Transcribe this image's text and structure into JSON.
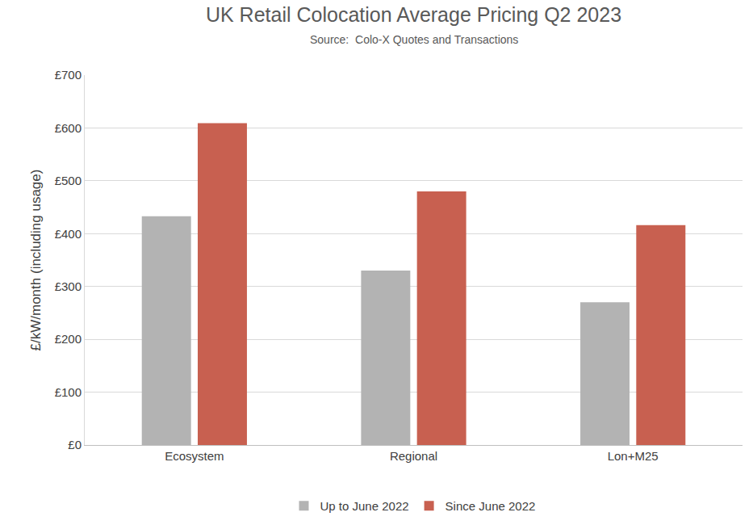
{
  "chart_data": {
    "type": "bar",
    "title": "UK Retail Colocation Average Pricing Q2 2023",
    "subtitle": "Source:  Colo-X Quotes and Transactions",
    "y_label": "£/kW/month (including usage)",
    "categories": [
      "Ecosystem",
      "Regional",
      "Lon+M25"
    ],
    "series": [
      {
        "name": "Up to June 2022",
        "color": "#b3b3b3",
        "values": [
          433,
          330,
          270
        ]
      },
      {
        "name": "Since June 2022",
        "color": "#c86050",
        "values": [
          609,
          480,
          416
        ]
      }
    ],
    "ylim": [
      0,
      700
    ],
    "yticks": [
      {
        "value": 0,
        "label": "£0"
      },
      {
        "value": 100,
        "label": "£100"
      },
      {
        "value": 200,
        "label": "£200"
      },
      {
        "value": 300,
        "label": "£300"
      },
      {
        "value": 400,
        "label": "£400"
      },
      {
        "value": 500,
        "label": "£500"
      },
      {
        "value": 600,
        "label": "£600"
      },
      {
        "value": 700,
        "label": "£700"
      }
    ],
    "grid": true,
    "legend": "bottom"
  }
}
